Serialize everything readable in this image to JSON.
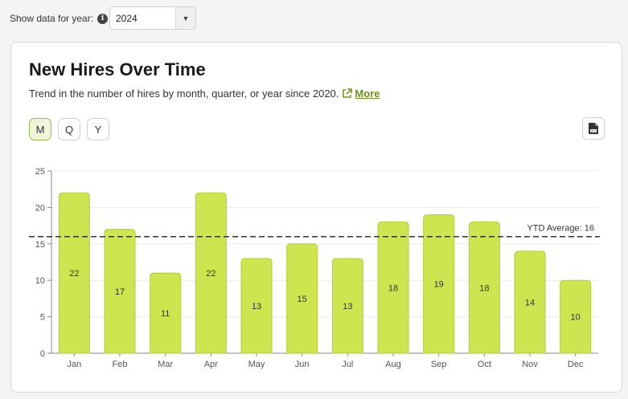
{
  "controls": {
    "year_label": "Show data for year:",
    "year_value": "2024",
    "info_icon": "info-icon",
    "caret_icon": "chevron-down-icon"
  },
  "card": {
    "title": "New Hires Over Time",
    "subtitle": "Trend in the number of hires by month, quarter, or year since 2020.",
    "more_label": "More",
    "period_buttons": [
      "M",
      "Q",
      "Y"
    ],
    "active_period": "M",
    "download_icon": "jpg-download-icon"
  },
  "colors": {
    "bar": "#cde54e",
    "bar_edge": "#b6cc3c",
    "accent": "#6f8f1e",
    "average_line": "#333333"
  },
  "chart_data": {
    "type": "bar",
    "categories": [
      "Jan",
      "Feb",
      "Mar",
      "Apr",
      "May",
      "Jun",
      "Jul",
      "Aug",
      "Sep",
      "Oct",
      "Nov",
      "Dec"
    ],
    "values": [
      22,
      17,
      11,
      22,
      13,
      15,
      13,
      18,
      19,
      18,
      14,
      10
    ],
    "yticks": [
      0,
      5,
      10,
      15,
      20,
      25
    ],
    "ylim": [
      0,
      25
    ],
    "average": {
      "label": "YTD Average: 16",
      "value": 16
    },
    "grid": true
  }
}
